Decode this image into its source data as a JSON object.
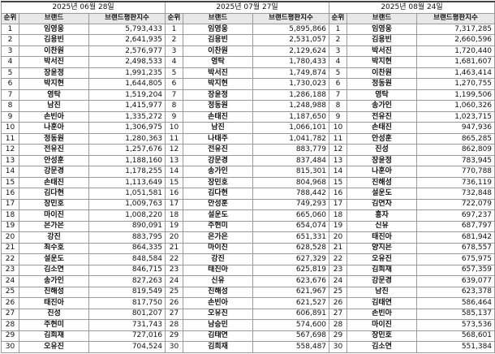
{
  "headers": {
    "rank": "순위",
    "brand": "브랜드",
    "index": "브랜드평판지수"
  },
  "tables": [
    {
      "date": "2025년 06월 28일",
      "rows": [
        [
          "1",
          "임영웅",
          "5,793,433"
        ],
        [
          "2",
          "김용빈",
          "2,641,935"
        ],
        [
          "3",
          "이찬원",
          "2,576,977"
        ],
        [
          "4",
          "박서진",
          "2,498,533"
        ],
        [
          "5",
          "장윤정",
          "1,991,235"
        ],
        [
          "6",
          "박지현",
          "1,644,805"
        ],
        [
          "7",
          "영탁",
          "1,519,204"
        ],
        [
          "8",
          "남진",
          "1,415,977"
        ],
        [
          "9",
          "손빈아",
          "1,335,272"
        ],
        [
          "10",
          "나훈아",
          "1,306,975"
        ],
        [
          "11",
          "정동원",
          "1,280,363"
        ],
        [
          "12",
          "전유진",
          "1,257,676"
        ],
        [
          "13",
          "안성훈",
          "1,188,160"
        ],
        [
          "14",
          "강문경",
          "1,178,255"
        ],
        [
          "15",
          "손태진",
          "1,113,649"
        ],
        [
          "16",
          "김다현",
          "1,051,581"
        ],
        [
          "17",
          "장민호",
          "1,009,763"
        ],
        [
          "18",
          "마이진",
          "1,008,220"
        ],
        [
          "19",
          "은가은",
          "890,091"
        ],
        [
          "20",
          "강진",
          "883,795"
        ],
        [
          "21",
          "최수호",
          "864,335"
        ],
        [
          "22",
          "설운도",
          "848,584"
        ],
        [
          "23",
          "김소연",
          "846,715"
        ],
        [
          "24",
          "송가인",
          "827,263"
        ],
        [
          "25",
          "진해성",
          "819,549"
        ],
        [
          "26",
          "태진아",
          "817,750"
        ],
        [
          "27",
          "진성",
          "801,207"
        ],
        [
          "28",
          "주현미",
          "731,743"
        ],
        [
          "29",
          "김희재",
          "727,016"
        ],
        [
          "30",
          "오유진",
          "704,524"
        ]
      ]
    },
    {
      "date": "2025년 07월 27일",
      "rows": [
        [
          "1",
          "임영웅",
          "5,895,866"
        ],
        [
          "2",
          "김용빈",
          "2,531,057"
        ],
        [
          "3",
          "이찬원",
          "2,129,624"
        ],
        [
          "4",
          "영탁",
          "1,780,433"
        ],
        [
          "5",
          "박서진",
          "1,749,874"
        ],
        [
          "6",
          "박지현",
          "1,730,023"
        ],
        [
          "7",
          "장윤정",
          "1,286,188"
        ],
        [
          "8",
          "정동원",
          "1,248,988"
        ],
        [
          "9",
          "손태진",
          "1,187,650"
        ],
        [
          "10",
          "남진",
          "1,066,101"
        ],
        [
          "11",
          "나태주",
          "1,041,782"
        ],
        [
          "12",
          "전유진",
          "883,779"
        ],
        [
          "13",
          "강문경",
          "837,484"
        ],
        [
          "14",
          "송가인",
          "815,301"
        ],
        [
          "15",
          "장민호",
          "804,968"
        ],
        [
          "16",
          "김다현",
          "788,442"
        ],
        [
          "17",
          "안성훈",
          "749,293"
        ],
        [
          "18",
          "설운도",
          "665,060"
        ],
        [
          "19",
          "주현미",
          "654,074"
        ],
        [
          "20",
          "은가은",
          "651,331"
        ],
        [
          "21",
          "마이진",
          "628,528"
        ],
        [
          "22",
          "강진",
          "627,329"
        ],
        [
          "23",
          "태진아",
          "625,819"
        ],
        [
          "24",
          "신유",
          "623,676"
        ],
        [
          "25",
          "진해성",
          "621,967"
        ],
        [
          "26",
          "손빈아",
          "621,527"
        ],
        [
          "27",
          "오유진",
          "606,891"
        ],
        [
          "28",
          "남승민",
          "574,600"
        ],
        [
          "29",
          "김태연",
          "567,698"
        ],
        [
          "30",
          "김희재",
          "558,487"
        ]
      ]
    },
    {
      "date": "2025년 08월 24일",
      "rows": [
        [
          "1",
          "임영웅",
          "7,317,285"
        ],
        [
          "2",
          "김용빈",
          "2,660,596"
        ],
        [
          "3",
          "박서진",
          "1,720,440"
        ],
        [
          "4",
          "박지현",
          "1,681,607"
        ],
        [
          "5",
          "이찬원",
          "1,463,414"
        ],
        [
          "6",
          "정동원",
          "1,270,755"
        ],
        [
          "7",
          "영탁",
          "1,199,506"
        ],
        [
          "8",
          "송가인",
          "1,060,326"
        ],
        [
          "9",
          "전유진",
          "1,023,715"
        ],
        [
          "10",
          "손태진",
          "947,936"
        ],
        [
          "11",
          "안성훈",
          "865,285"
        ],
        [
          "12",
          "진성",
          "862,809"
        ],
        [
          "13",
          "장윤정",
          "783,945"
        ],
        [
          "14",
          "나훈아",
          "770,788"
        ],
        [
          "15",
          "진해성",
          "736,119"
        ],
        [
          "16",
          "설운도",
          "732,848"
        ],
        [
          "17",
          "김연자",
          "722,079"
        ],
        [
          "18",
          "홍자",
          "697,237"
        ],
        [
          "19",
          "신유",
          "687,797"
        ],
        [
          "20",
          "태진아",
          "681,942"
        ],
        [
          "21",
          "양지은",
          "678,557"
        ],
        [
          "22",
          "오유진",
          "675,975"
        ],
        [
          "23",
          "김희재",
          "657,359"
        ],
        [
          "24",
          "강문경",
          "639,077"
        ],
        [
          "25",
          "남진",
          "623,378"
        ],
        [
          "26",
          "김태연",
          "586,464"
        ],
        [
          "27",
          "손빈아",
          "585,137"
        ],
        [
          "28",
          "마이진",
          "573,536"
        ],
        [
          "29",
          "장민호",
          "568,601"
        ],
        [
          "30",
          "김소연",
          "551,384"
        ]
      ]
    }
  ]
}
